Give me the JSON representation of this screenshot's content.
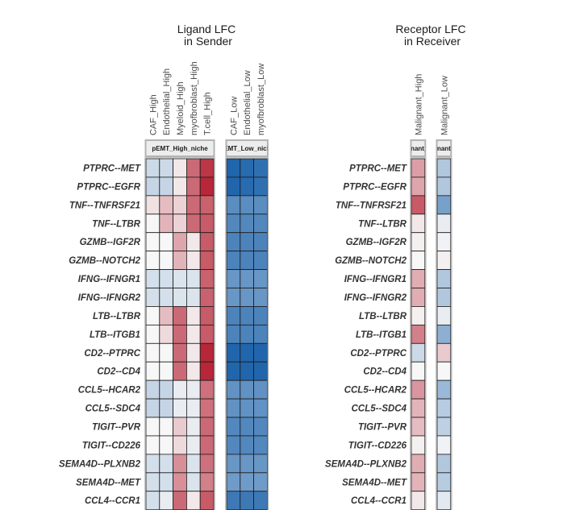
{
  "chart_data": {
    "type": "heatmap",
    "rows": [
      "PTPRC--MET",
      "PTPRC--EGFR",
      "TNF--TNFRSF21",
      "TNF--LTBR",
      "GZMB--IGF2R",
      "GZMB--NOTCH2",
      "IFNG--IFNGR1",
      "IFNG--IFNGR2",
      "LTB--LTBR",
      "LTB--ITGB1",
      "CD2--PTPRC",
      "CD2--CD4",
      "CCL5--HCAR2",
      "CCL5--SDC4",
      "TIGIT--PVR",
      "TIGIT--CD226",
      "SEMA4D--PLXNB2",
      "SEMA4D--MET",
      "CCL4--CCR1"
    ],
    "color_scale": {
      "negative": "#2166ac",
      "zero": "#f7f7f7",
      "positive": "#b2182b",
      "range": [
        -3,
        3
      ]
    },
    "panels": [
      {
        "id": "ligand",
        "title": [
          "Ligand LFC",
          "in Sender"
        ],
        "columns": [
          "CAF_High",
          "Endothelial_High",
          "Myeloid_High",
          "myofbroblast_High",
          "T.cell_High",
          "CAF_Low",
          "Endothelial_Low",
          "myofbroblast_Low"
        ],
        "strips": [
          {
            "label": "pEMT_High_niche",
            "values": [
              [
                -0.6,
                -0.6,
                0.2,
                1.9,
                2.6
              ],
              [
                -0.7,
                -0.7,
                0.2,
                1.9,
                2.8
              ],
              [
                0.3,
                0.8,
                0.5,
                1.9,
                2.0
              ],
              [
                0.0,
                0.9,
                0.5,
                1.9,
                2.1
              ],
              [
                0.0,
                0.0,
                1.1,
                0.2,
                2.1
              ],
              [
                0.0,
                0.0,
                0.9,
                0.2,
                2.1
              ],
              [
                -0.5,
                -0.5,
                -0.4,
                -0.4,
                2.0
              ],
              [
                -0.5,
                -0.5,
                -0.4,
                -0.4,
                2.0
              ],
              [
                0.0,
                0.8,
                1.9,
                0.2,
                2.1
              ],
              [
                0.0,
                0.4,
                1.9,
                0.2,
                2.1
              ],
              [
                0.0,
                0.0,
                1.9,
                0.2,
                2.8
              ],
              [
                0.0,
                0.0,
                1.9,
                0.2,
                2.8
              ],
              [
                -0.7,
                -0.7,
                -0.2,
                -0.2,
                1.8
              ],
              [
                -0.7,
                -0.7,
                -0.2,
                -0.2,
                1.8
              ],
              [
                0.0,
                0.0,
                0.6,
                -0.2,
                1.9
              ],
              [
                0.0,
                0.0,
                0.4,
                -0.2,
                1.9
              ],
              [
                -0.5,
                -0.5,
                1.4,
                -0.4,
                1.8
              ],
              [
                -0.5,
                -0.5,
                1.4,
                -0.4,
                1.6
              ],
              [
                -0.5,
                -0.2,
                1.9,
                0.2,
                2.1
              ]
            ]
          },
          {
            "label": "pEMT_Low_niche",
            "values": [
              [
                -3.0,
                -2.9,
                -2.8
              ],
              [
                -3.0,
                -2.9,
                -2.8
              ],
              [
                -2.2,
                -2.2,
                -2.2
              ],
              [
                -2.3,
                -2.3,
                -2.3
              ],
              [
                -2.4,
                -2.4,
                -2.4
              ],
              [
                -2.4,
                -2.4,
                -2.4
              ],
              [
                -2.0,
                -2.0,
                -2.0
              ],
              [
                -2.0,
                -2.0,
                -2.0
              ],
              [
                -2.4,
                -2.4,
                -2.4
              ],
              [
                -2.4,
                -2.4,
                -2.4
              ],
              [
                -3.0,
                -3.0,
                -3.0
              ],
              [
                -3.0,
                -3.0,
                -3.0
              ],
              [
                -2.1,
                -2.1,
                -2.1
              ],
              [
                -2.1,
                -2.1,
                -2.1
              ],
              [
                -2.3,
                -2.3,
                -2.3
              ],
              [
                -2.3,
                -2.3,
                -2.3
              ],
              [
                -2.0,
                -2.0,
                -2.0
              ],
              [
                -1.9,
                -1.9,
                -1.9
              ],
              [
                -2.6,
                -2.6,
                -2.6
              ]
            ]
          }
        ]
      },
      {
        "id": "receptor",
        "title": [
          "Receptor LFC",
          "in Receiver"
        ],
        "columns": [
          "Malignant_High",
          "Malignant_Low"
        ],
        "strips": [
          {
            "label": "Malignant_High",
            "values": [
              [
                1.2
              ],
              [
                1.1
              ],
              [
                2.1
              ],
              [
                0.2
              ],
              [
                0.1
              ],
              [
                0.0
              ],
              [
                1.0
              ],
              [
                1.0
              ],
              [
                0.1
              ],
              [
                1.6
              ],
              [
                -0.6
              ],
              [
                0.0
              ],
              [
                1.3
              ],
              [
                0.9
              ],
              [
                0.8
              ],
              [
                0.1
              ],
              [
                1.0
              ],
              [
                0.9
              ],
              [
                0.2
              ]
            ]
          },
          {
            "label": "Malignant_Low",
            "values": [
              [
                -1.0
              ],
              [
                -1.0
              ],
              [
                -1.8
              ],
              [
                -0.2
              ],
              [
                -0.1
              ],
              [
                0.1
              ],
              [
                -1.0
              ],
              [
                -1.0
              ],
              [
                -0.2
              ],
              [
                -1.5
              ],
              [
                0.6
              ],
              [
                0.0
              ],
              [
                -1.3
              ],
              [
                -0.9
              ],
              [
                -0.8
              ],
              [
                -0.1
              ],
              [
                -1.0
              ],
              [
                -0.9
              ],
              [
                -0.3
              ]
            ]
          }
        ]
      }
    ]
  }
}
